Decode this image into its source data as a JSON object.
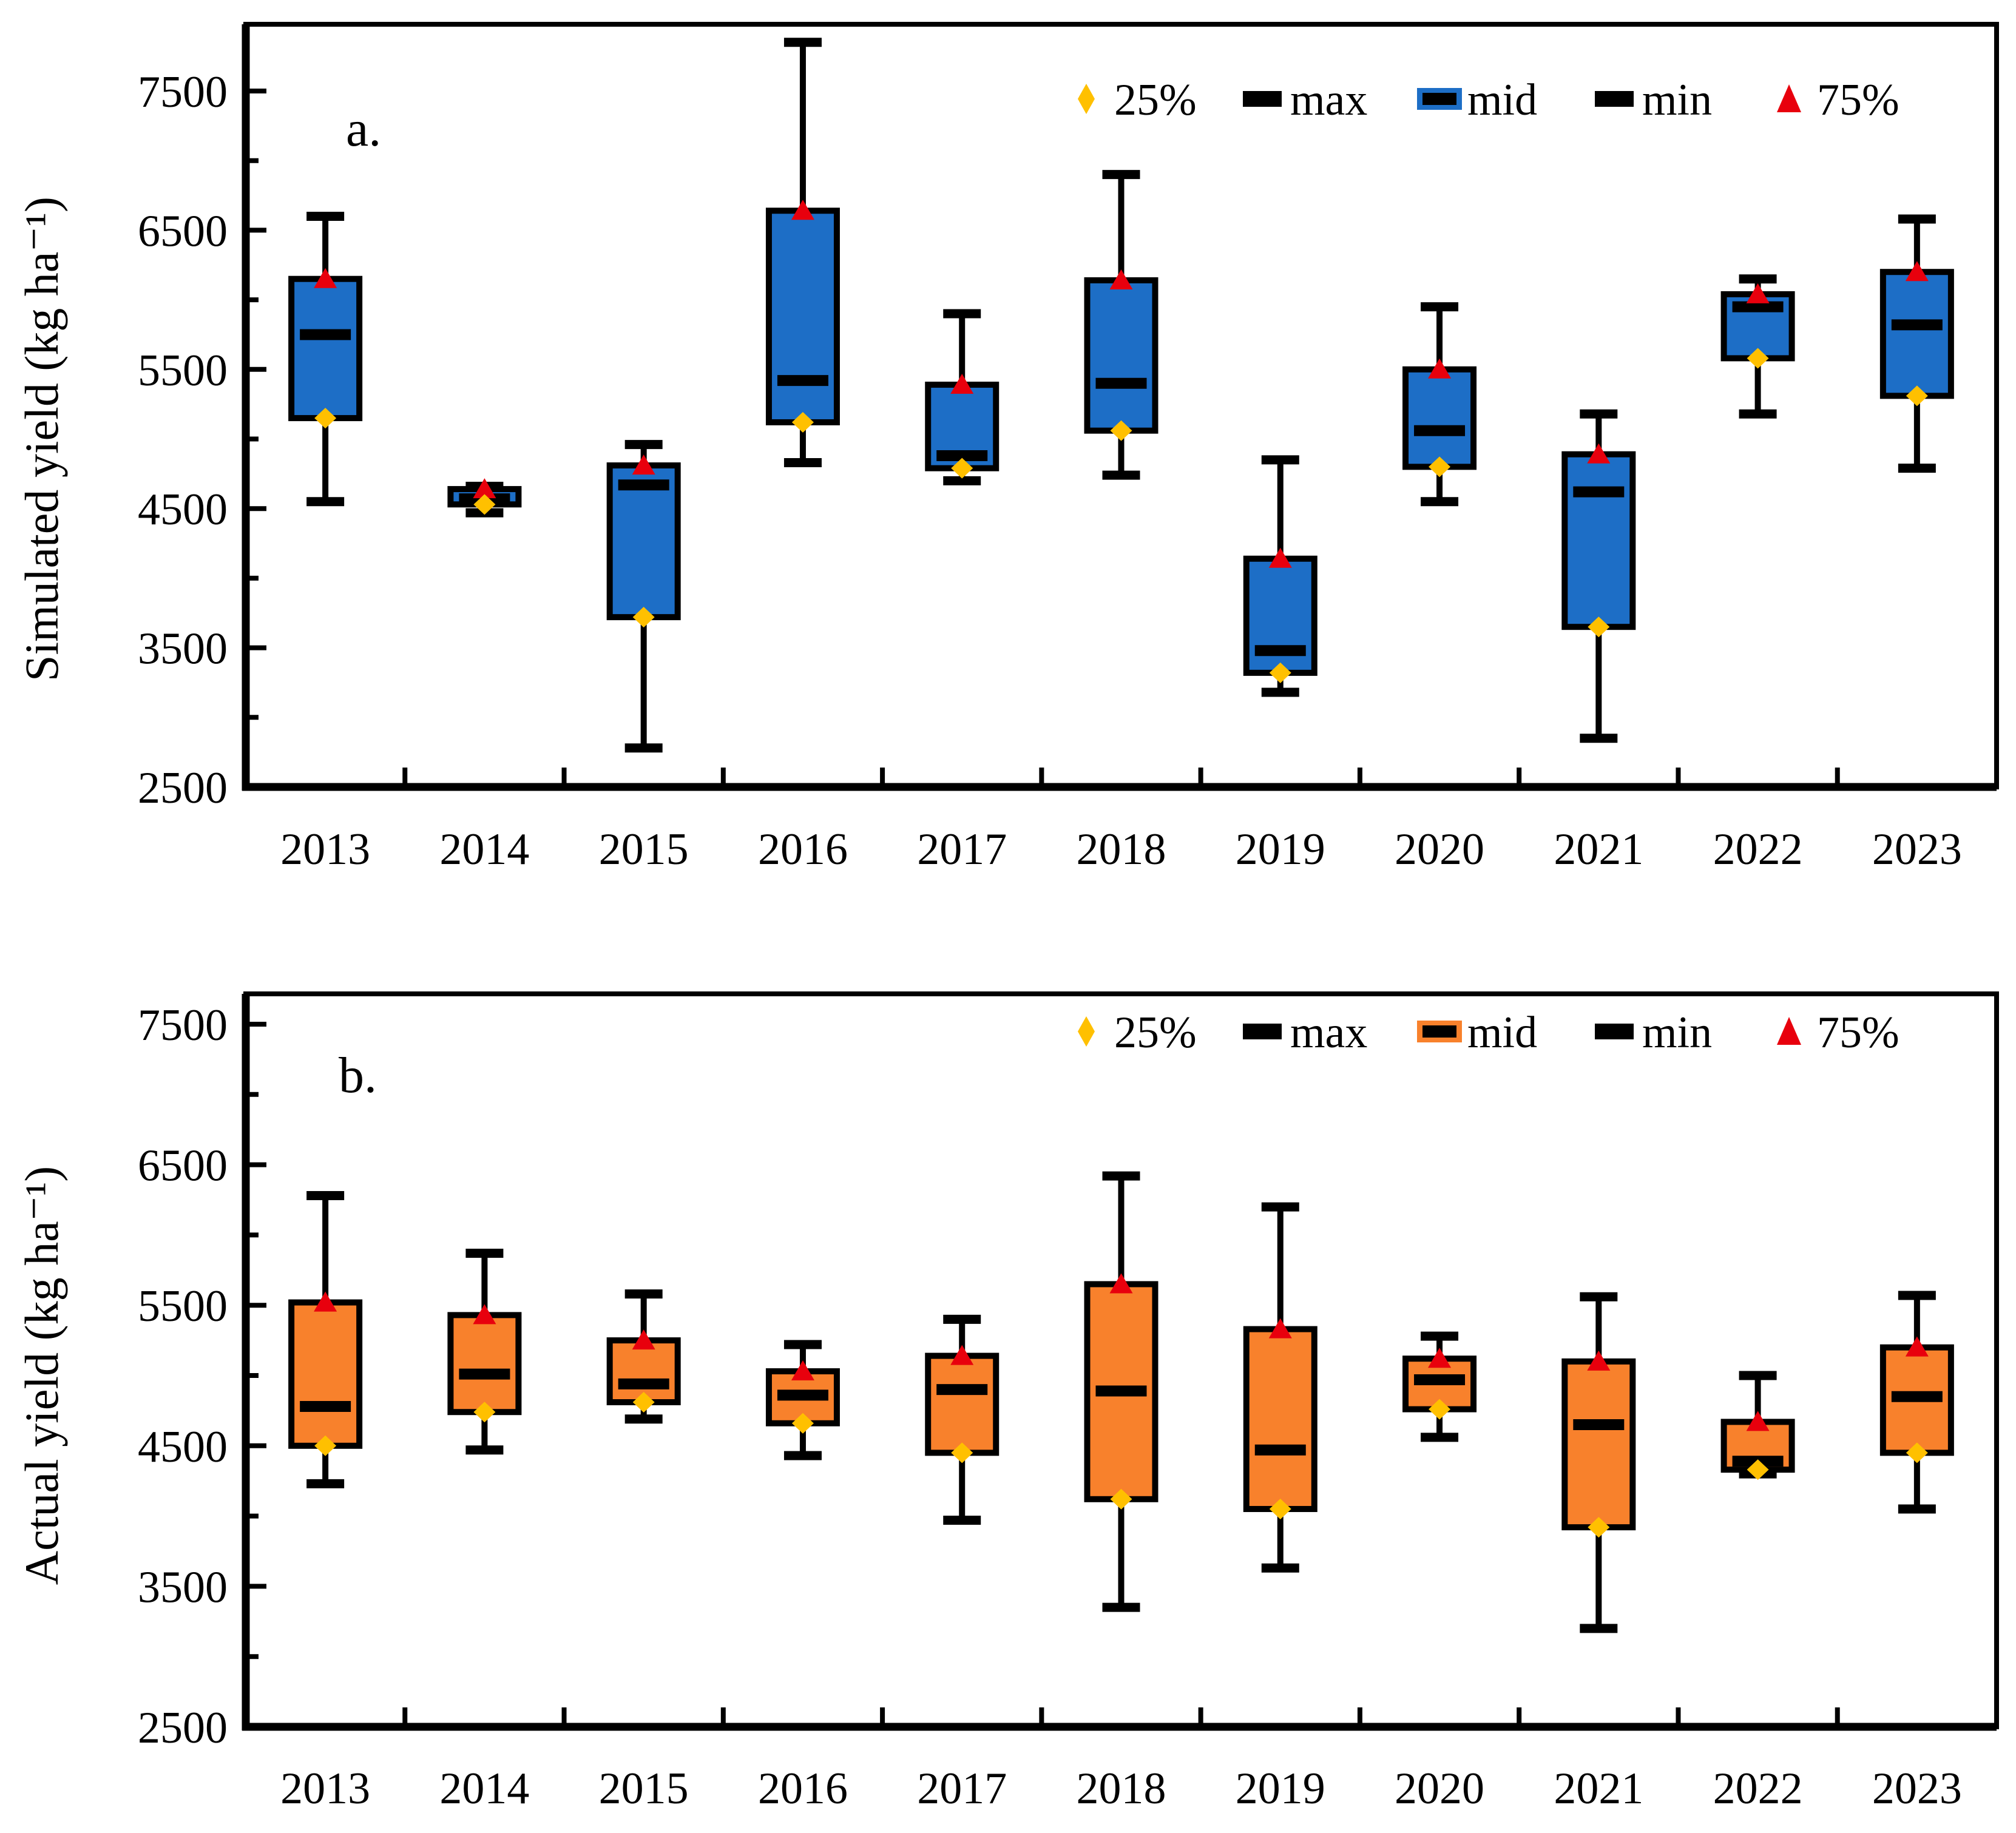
{
  "figure_title": "",
  "chart_data": [
    {
      "type": "box",
      "panel_label": "a.",
      "ylabel": "Simulated yield (kg ha⁻¹)",
      "xlabel": "",
      "categories": [
        "2013",
        "2014",
        "2015",
        "2016",
        "2017",
        "2018",
        "2019",
        "2020",
        "2021",
        "2022",
        "2023"
      ],
      "ylim": [
        2500,
        7980
      ],
      "ytick_values": [
        2500,
        3500,
        4500,
        5500,
        6500,
        7500
      ],
      "ytick_labels": [
        "2500",
        "3500",
        "4500",
        "5500",
        "6500",
        "7500"
      ],
      "ytick_minor_step": 500,
      "grid": false,
      "legend_position": "top-right-inside",
      "box_color": "#1D6EC6",
      "legend": [
        {
          "label": "25%",
          "marker": "diamond",
          "color": "#FFC000"
        },
        {
          "label": "max",
          "marker": "dash",
          "color": "#000000"
        },
        {
          "label": "mid",
          "marker": "dash-outlined",
          "color": "#000000",
          "outline": "#1D6EC6"
        },
        {
          "label": "min",
          "marker": "dash",
          "color": "#000000"
        },
        {
          "label": "75%",
          "marker": "triangle",
          "color": "#E8000D"
        }
      ],
      "stats_order": [
        "min",
        "q1",
        "mid",
        "q3",
        "max"
      ],
      "stats": [
        [
          4550,
          5150,
          5750,
          6150,
          6600
        ],
        [
          4470,
          4530,
          4570,
          4640,
          4660
        ],
        [
          2780,
          3720,
          4670,
          4810,
          4960
        ],
        [
          4830,
          5120,
          5420,
          6640,
          7850
        ],
        [
          4700,
          4790,
          4880,
          5390,
          5900
        ],
        [
          4740,
          5060,
          5400,
          6140,
          6900
        ],
        [
          3180,
          3320,
          3480,
          4140,
          4850
        ],
        [
          4550,
          4800,
          5060,
          5500,
          5950
        ],
        [
          2850,
          3650,
          4620,
          4890,
          5180
        ],
        [
          5180,
          5580,
          5950,
          6040,
          6150
        ],
        [
          4790,
          5310,
          5820,
          6200,
          6580
        ]
      ]
    },
    {
      "type": "box",
      "panel_label": "b.",
      "ylabel": "Actual yield (kg ha⁻¹)",
      "xlabel": "",
      "categories": [
        "2013",
        "2014",
        "2015",
        "2016",
        "2017",
        "2018",
        "2019",
        "2020",
        "2021",
        "2022",
        "2023"
      ],
      "ylim": [
        2500,
        7716
      ],
      "ytick_values": [
        2500,
        3500,
        4500,
        5500,
        6500,
        7500
      ],
      "ytick_labels": [
        "2500",
        "3500",
        "4500",
        "5500",
        "6500",
        "7500"
      ],
      "ytick_minor_step": 500,
      "grid": false,
      "legend_position": "top-right-inside",
      "box_color": "#F8812C",
      "legend": [
        {
          "label": "25%",
          "marker": "diamond",
          "color": "#FFC000"
        },
        {
          "label": "max",
          "marker": "dash",
          "color": "#000000"
        },
        {
          "label": "mid",
          "marker": "dash-outlined",
          "color": "#000000",
          "outline": "#F8812C"
        },
        {
          "label": "min",
          "marker": "dash",
          "color": "#000000"
        },
        {
          "label": "75%",
          "marker": "triangle",
          "color": "#E8000D"
        }
      ],
      "stats_order": [
        "min",
        "q1",
        "mid",
        "q3",
        "max"
      ],
      "stats": [
        [
          4230,
          4500,
          4780,
          5520,
          6280
        ],
        [
          4470,
          4740,
          5010,
          5430,
          5870
        ],
        [
          4690,
          4810,
          4940,
          5250,
          5580
        ],
        [
          4430,
          4660,
          4860,
          5030,
          5220
        ],
        [
          3970,
          4450,
          4900,
          5140,
          5400
        ],
        [
          3350,
          4120,
          4890,
          5650,
          6420
        ],
        [
          3630,
          4050,
          4470,
          5330,
          6200
        ],
        [
          4560,
          4760,
          4970,
          5120,
          5280
        ],
        [
          3200,
          3920,
          4650,
          5100,
          5560
        ],
        [
          4300,
          4330,
          4390,
          4670,
          5000
        ],
        [
          4050,
          4450,
          4850,
          5200,
          5570
        ]
      ]
    }
  ]
}
